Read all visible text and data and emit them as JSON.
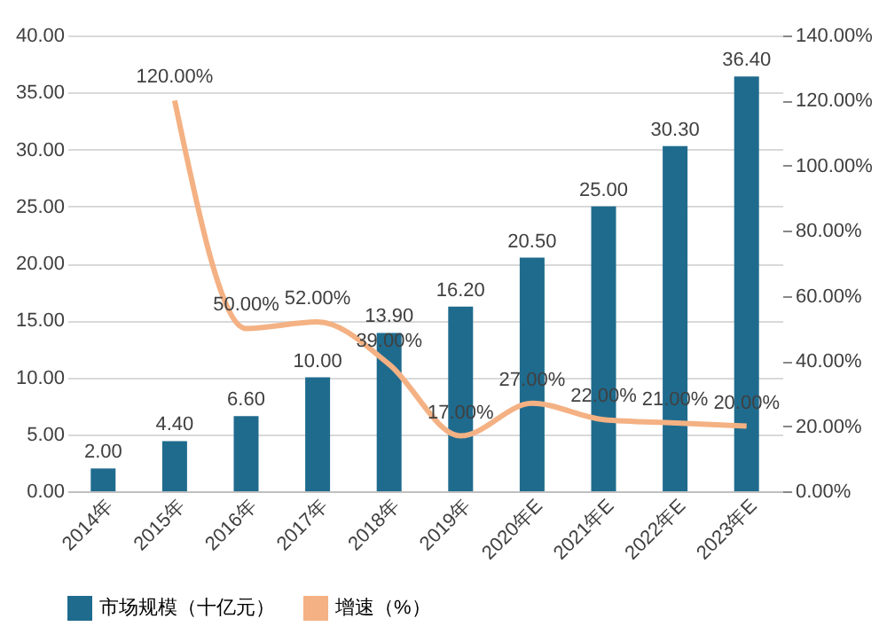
{
  "chart_data": {
    "type": "bar",
    "categories": [
      "2014年",
      "2015年",
      "2016年",
      "2017年",
      "2018年",
      "2019年",
      "2020年E",
      "2021年E",
      "2022年E",
      "2023年E"
    ],
    "series": [
      {
        "name": "市场规模（十亿元）",
        "color": "#1f6b8e",
        "values": [
          2.0,
          4.4,
          6.6,
          10.0,
          13.9,
          16.2,
          20.5,
          25.0,
          30.3,
          36.4
        ],
        "value_labels": [
          "2.00",
          "4.40",
          "6.60",
          "10.00",
          "13.90",
          "16.20",
          "20.50",
          "25.00",
          "30.30",
          "36.40"
        ]
      },
      {
        "name": "增速（%）",
        "type": "line",
        "axis": "y2",
        "color": "#f4b183",
        "values": [
          null,
          120,
          50,
          52,
          39,
          17,
          27,
          22,
          21,
          20
        ],
        "value_labels": [
          null,
          "120.00%",
          "50.00%",
          "52.00%",
          "39.00%",
          "17.00%",
          "27.00%",
          "22.00%",
          "21.00%",
          "20.00%"
        ]
      }
    ],
    "ylim": [
      0,
      40
    ],
    "yticks": [
      {
        "value": 0,
        "label": "0.00"
      },
      {
        "value": 5,
        "label": "5.00"
      },
      {
        "value": 10,
        "label": "10.00"
      },
      {
        "value": 15,
        "label": "15.00"
      },
      {
        "value": 20,
        "label": "20.00"
      },
      {
        "value": 25,
        "label": "25.00"
      },
      {
        "value": 30,
        "label": "30.00"
      },
      {
        "value": 35,
        "label": "35.00"
      },
      {
        "value": 40,
        "label": "40.00"
      }
    ],
    "y2lim": [
      0,
      140
    ],
    "y2ticks": [
      {
        "value": 0,
        "label": "0.00%"
      },
      {
        "value": 20,
        "label": "20.00%"
      },
      {
        "value": 40,
        "label": "40.00%"
      },
      {
        "value": 60,
        "label": "60.00%"
      },
      {
        "value": 80,
        "label": "80.00%"
      },
      {
        "value": 100,
        "label": "100.00%"
      },
      {
        "value": 120,
        "label": "120.00%"
      },
      {
        "value": 140,
        "label": "140.00%"
      }
    ],
    "grid": "y",
    "legend": "bottom"
  }
}
